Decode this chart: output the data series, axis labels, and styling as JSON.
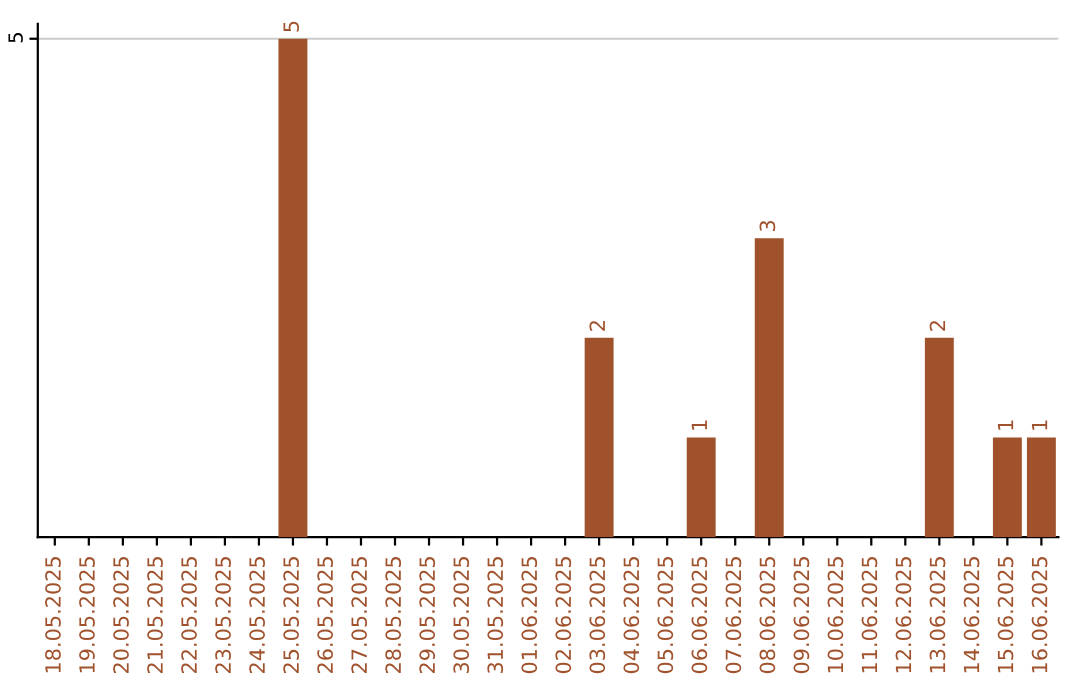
{
  "chart_data": {
    "type": "bar",
    "categories": [
      "18.05.2025",
      "19.05.2025",
      "20.05.2025",
      "21.05.2025",
      "22.05.2025",
      "23.05.2025",
      "24.05.2025",
      "25.05.2025",
      "26.05.2025",
      "27.05.2025",
      "28.05.2025",
      "29.05.2025",
      "30.05.2025",
      "31.05.2025",
      "01.06.2025",
      "02.06.2025",
      "03.06.2025",
      "04.06.2025",
      "05.06.2025",
      "06.06.2025",
      "07.06.2025",
      "08.06.2025",
      "09.06.2025",
      "10.06.2025",
      "11.06.2025",
      "12.06.2025",
      "13.06.2025",
      "14.06.2025",
      "15.06.2025",
      "16.06.2025"
    ],
    "values": [
      0,
      0,
      0,
      0,
      0,
      0,
      0,
      5,
      0,
      0,
      0,
      0,
      0,
      0,
      0,
      0,
      2,
      0,
      0,
      1,
      0,
      3,
      0,
      0,
      0,
      0,
      2,
      0,
      1,
      1
    ],
    "value_labels": [
      null,
      null,
      null,
      null,
      null,
      null,
      null,
      "5",
      null,
      null,
      null,
      null,
      null,
      null,
      null,
      null,
      "2",
      null,
      null,
      "1",
      null,
      "3",
      null,
      null,
      null,
      null,
      "2",
      null,
      "1",
      "1"
    ],
    "color": "#a0522d",
    "ylim": [
      0,
      5.15
    ],
    "yticks": [
      5
    ],
    "grid": "y",
    "legend": false
  }
}
